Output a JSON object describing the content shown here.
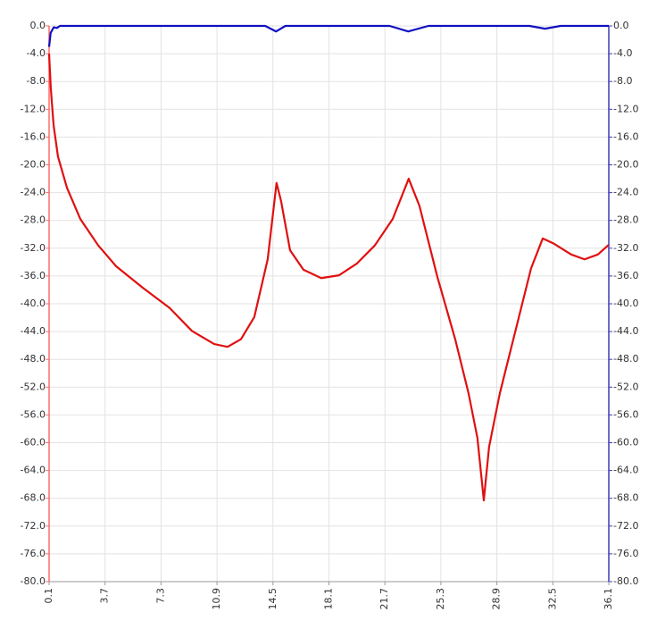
{
  "chart_data": {
    "type": "line",
    "xlim": [
      0.1,
      36.1
    ],
    "xticks": [
      0.1,
      3.7,
      7.3,
      10.9,
      14.5,
      18.1,
      21.7,
      25.3,
      28.9,
      32.5,
      36.1
    ],
    "ylim": [
      -80,
      0
    ],
    "yticks": [
      {
        "value": 0,
        "label": "0.0"
      },
      {
        "value": -4,
        "label": "-4.0"
      },
      {
        "value": -8,
        "label": "-8.0"
      },
      {
        "value": -12,
        "label": "-12.0"
      },
      {
        "value": -16,
        "label": "-16.0"
      },
      {
        "value": -20,
        "label": "-20.0"
      },
      {
        "value": -24,
        "label": "-24.0"
      },
      {
        "value": -28,
        "label": "-28.0"
      },
      {
        "value": -32,
        "label": "-32.0"
      },
      {
        "value": -36,
        "label": "-36.0"
      },
      {
        "value": -40,
        "label": "-40.0"
      },
      {
        "value": -44,
        "label": "-44.0"
      },
      {
        "value": -48,
        "label": "-48.0"
      },
      {
        "value": -52,
        "label": "-52.0"
      },
      {
        "value": -56,
        "label": "-56.0"
      },
      {
        "value": -60,
        "label": "-60.0"
      },
      {
        "value": -64,
        "label": "-64.0"
      },
      {
        "value": -68,
        "label": "-68.0"
      },
      {
        "value": -72,
        "label": "-72.0"
      },
      {
        "value": -76,
        "label": "-76.0"
      },
      {
        "value": -80,
        "label": "-80.0"
      }
    ],
    "y2lim": [
      -80,
      0
    ],
    "y2ticks": [
      {
        "value": 0,
        "label": "0.0"
      },
      {
        "value": -4,
        "label": "-4.0"
      },
      {
        "value": -8,
        "label": "-8.0"
      },
      {
        "value": -12,
        "label": "-12.0"
      },
      {
        "value": -16,
        "label": "-16.0"
      },
      {
        "value": -20,
        "label": "-20.0"
      },
      {
        "value": -24,
        "label": "-24.0"
      },
      {
        "value": -28,
        "label": "-28.0"
      },
      {
        "value": -32,
        "label": "-32.0"
      },
      {
        "value": -36,
        "label": "-36.0"
      },
      {
        "value": -40,
        "label": "-40.0"
      },
      {
        "value": -44,
        "label": "-44.0"
      },
      {
        "value": -48,
        "label": "-48.0"
      },
      {
        "value": -52,
        "label": "-52.0"
      },
      {
        "value": -56,
        "label": "-56.0"
      },
      {
        "value": -60,
        "label": "-60.0"
      },
      {
        "value": -64,
        "label": "-64.0"
      },
      {
        "value": -68,
        "label": "-68.0"
      },
      {
        "value": -72,
        "label": "-72.0"
      },
      {
        "value": -76,
        "label": "-76.0"
      },
      {
        "value": -80,
        "label": "-80.0"
      }
    ],
    "y_axis_color": "#ff6b6b",
    "y2_axis_color": "#3b3bb8",
    "grid": true,
    "series": [
      {
        "color": "#e01010",
        "x": [
          0.1,
          0.21,
          0.39,
          0.67,
          1.25,
          2.11,
          3.26,
          4.41,
          6.13,
          7.85,
          9.28,
          10.72,
          11.58,
          12.44,
          13.3,
          14.16,
          14.73,
          15.02,
          15.6,
          16.46,
          17.6,
          18.75,
          19.9,
          21.05,
          22.2,
          23.23,
          23.92,
          25.07,
          26.22,
          27.08,
          27.65,
          28.06,
          28.4,
          29.09,
          30.24,
          31.1,
          31.85,
          32.53,
          33.68,
          34.54,
          35.4,
          36.1
        ],
        "values": [
          -4,
          -9,
          -14.3,
          -18.8,
          -23.3,
          -27.8,
          -31.6,
          -34.6,
          -37.7,
          -40.6,
          -43.9,
          -45.8,
          -46.2,
          -45.1,
          -41.9,
          -33.6,
          -22.6,
          -25.2,
          -32.3,
          -35.1,
          -36.3,
          -35.9,
          -34.2,
          -31.6,
          -27.8,
          -22,
          -25.9,
          -36.1,
          -45.1,
          -52.9,
          -59.3,
          -68.3,
          -60.6,
          -52.9,
          -42.6,
          -34.9,
          -30.6,
          -31.3,
          -32.9,
          -33.6,
          -32.9,
          -31.5
        ]
      },
      {
        "color": "#1010c0",
        "axis": "y2",
        "x": [
          0.1,
          0.2,
          0.4,
          0.6,
          0.8,
          5,
          14.0,
          14.7,
          15.3,
          22.0,
          23.2,
          24.5,
          31,
          32,
          33,
          36.1
        ],
        "values": [
          -3,
          -1,
          -0.2,
          -0.3,
          0,
          0,
          0,
          -0.8,
          0,
          0,
          -0.8,
          0,
          0,
          -0.4,
          0,
          0
        ]
      }
    ]
  }
}
